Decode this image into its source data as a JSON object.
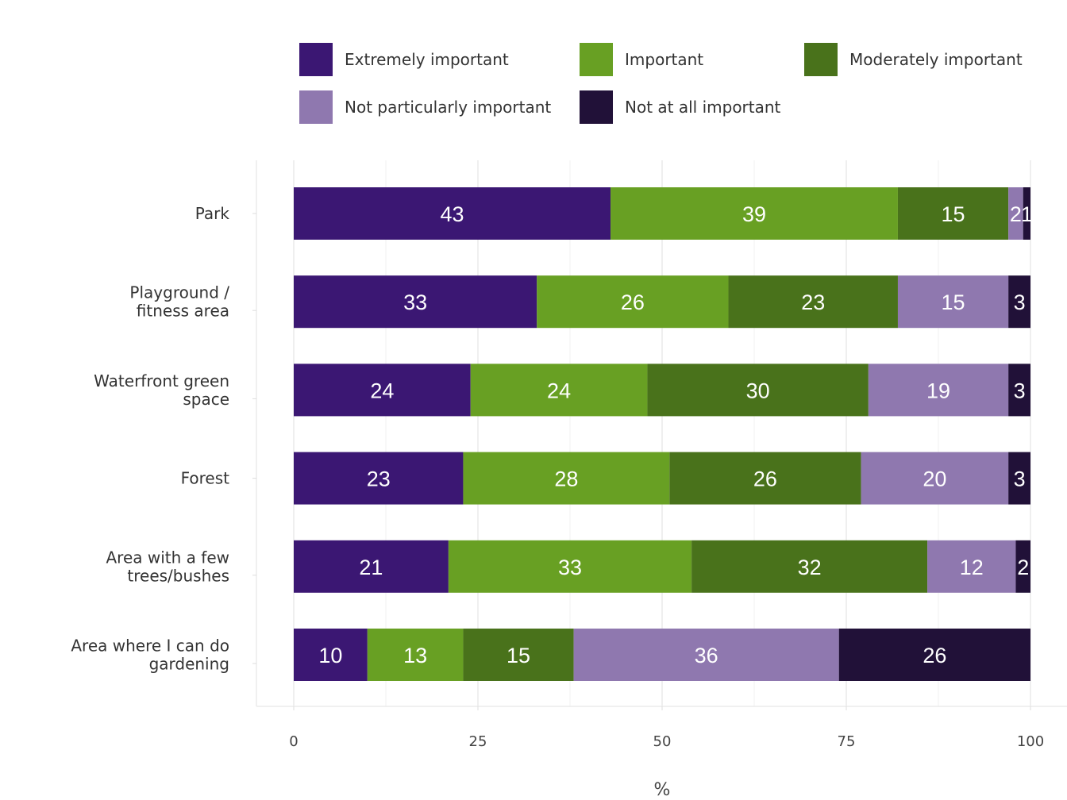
{
  "chart_data": {
    "type": "bar",
    "orientation": "horizontal",
    "stacked": true,
    "categories": [
      [
        "Park"
      ],
      [
        "Playground /",
        "fitness area"
      ],
      [
        "Waterfront green",
        "space"
      ],
      [
        "Forest"
      ],
      [
        "Area with a few",
        "trees/bushes"
      ],
      [
        "Area where I can do",
        "gardening"
      ]
    ],
    "series": [
      {
        "name": "Extremely important",
        "color": "#3b1773",
        "values": [
          43,
          33,
          24,
          23,
          21,
          10
        ]
      },
      {
        "name": "Important",
        "color": "#68a023",
        "values": [
          39,
          26,
          24,
          28,
          33,
          13
        ]
      },
      {
        "name": "Moderately important",
        "color": "#49721b",
        "values": [
          15,
          23,
          30,
          26,
          32,
          15
        ]
      },
      {
        "name": "Not particularly important",
        "color": "#8f78af",
        "values": [
          2,
          15,
          19,
          20,
          12,
          36
        ]
      },
      {
        "name": "Not at all important",
        "color": "#211138",
        "values": [
          1,
          3,
          3,
          3,
          2,
          26
        ]
      }
    ],
    "xlabel": "%",
    "ylabel": "",
    "xlim": [
      0,
      100
    ],
    "xticks": [
      0,
      25,
      50,
      75,
      100
    ],
    "grid": true,
    "legend_position": "top"
  }
}
